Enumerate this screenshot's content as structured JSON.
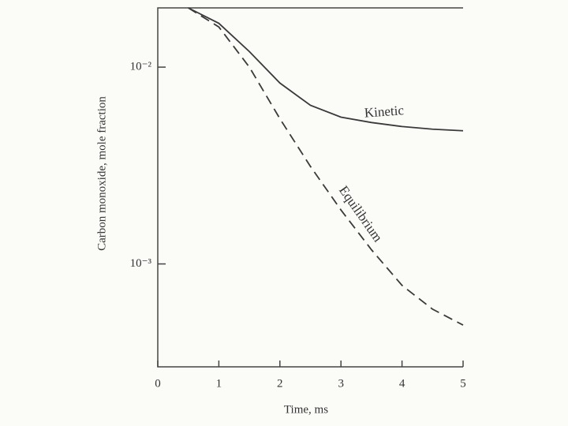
{
  "chart_data": {
    "type": "line",
    "xlabel": "Time, ms",
    "ylabel": "Carbon monoxide, mole fraction",
    "x": [
      0.5,
      1,
      1.5,
      2,
      2.5,
      3,
      3.5,
      4,
      4.5,
      5
    ],
    "series": [
      {
        "name": "Kinetic",
        "color": "#3a3a3a",
        "style": "solid",
        "values": [
          0.02,
          0.0167,
          0.012,
          0.0083,
          0.0064,
          0.00557,
          0.00523,
          0.00499,
          0.00484,
          0.00475
        ]
      },
      {
        "name": "Equilibrium",
        "color": "#3a3a3a",
        "style": "dashed",
        "values": [
          0.02,
          0.016,
          0.01,
          0.00547,
          0.00313,
          0.00188,
          0.00118,
          0.000778,
          0.000589,
          0.000489
        ]
      }
    ],
    "xlim": [
      0,
      5
    ],
    "xticks": [
      0,
      1,
      2,
      3,
      4,
      5
    ],
    "ylim": [
      0.0003,
      0.02
    ],
    "yticks": [
      {
        "value": 0.001,
        "label": "10⁻³"
      },
      {
        "value": 0.01,
        "label": "10⁻²"
      }
    ],
    "ylog": true
  }
}
